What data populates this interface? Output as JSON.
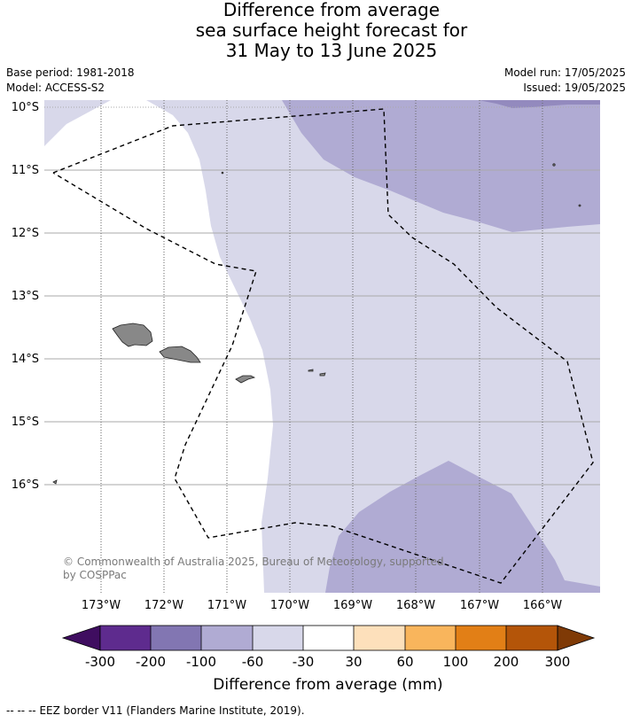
{
  "title": {
    "line1": "Difference from average",
    "line2": "sea surface height forecast for",
    "line3": "31 May to 13 June 2025"
  },
  "meta": {
    "base_period": "Base period: 1981-2018",
    "model": "Model: ACCESS-S2",
    "model_run": "Model run: 17/05/2025",
    "issued": "Issued: 19/05/2025"
  },
  "map": {
    "lat_labels": [
      "10°S",
      "11°S",
      "12°S",
      "13°S",
      "14°S",
      "15°S",
      "16°S"
    ],
    "lon_labels": [
      "173°W",
      "172°W",
      "171°W",
      "170°W",
      "169°W",
      "168°W",
      "167°W",
      "166°W"
    ],
    "copyright_line1": "© Commonwealth of Australia 2025, Bureau of Meteorology, supported",
    "copyright_line2": "by COSPPac",
    "colors": {
      "ocean_near_zero": "#ffffff",
      "band_minus30_minus60": "#d8d8ea",
      "band_minus60_minus100": "#b0abd3",
      "band_minus100_minus200": "#8a7fb7",
      "land": "#888888",
      "grid": "#aaaaaa",
      "eez": "#000000"
    }
  },
  "colorbar": {
    "tick_labels": [
      "-300",
      "-200",
      "-100",
      "-60",
      "-30",
      "30",
      "60",
      "100",
      "200",
      "300"
    ],
    "colors": [
      "#3f0d60",
      "#5e2b8e",
      "#8276b2",
      "#b0abd3",
      "#d8d8ea",
      "#ffffff",
      "#fde0bb",
      "#f9b55c",
      "#e27f16",
      "#b45509",
      "#7f3a06"
    ],
    "label": "Difference from average (mm)"
  },
  "footer": {
    "legend_symbol": "--  --  --",
    "legend_text": "EEZ border V11 (Flanders Marine Institute, 2019)."
  }
}
